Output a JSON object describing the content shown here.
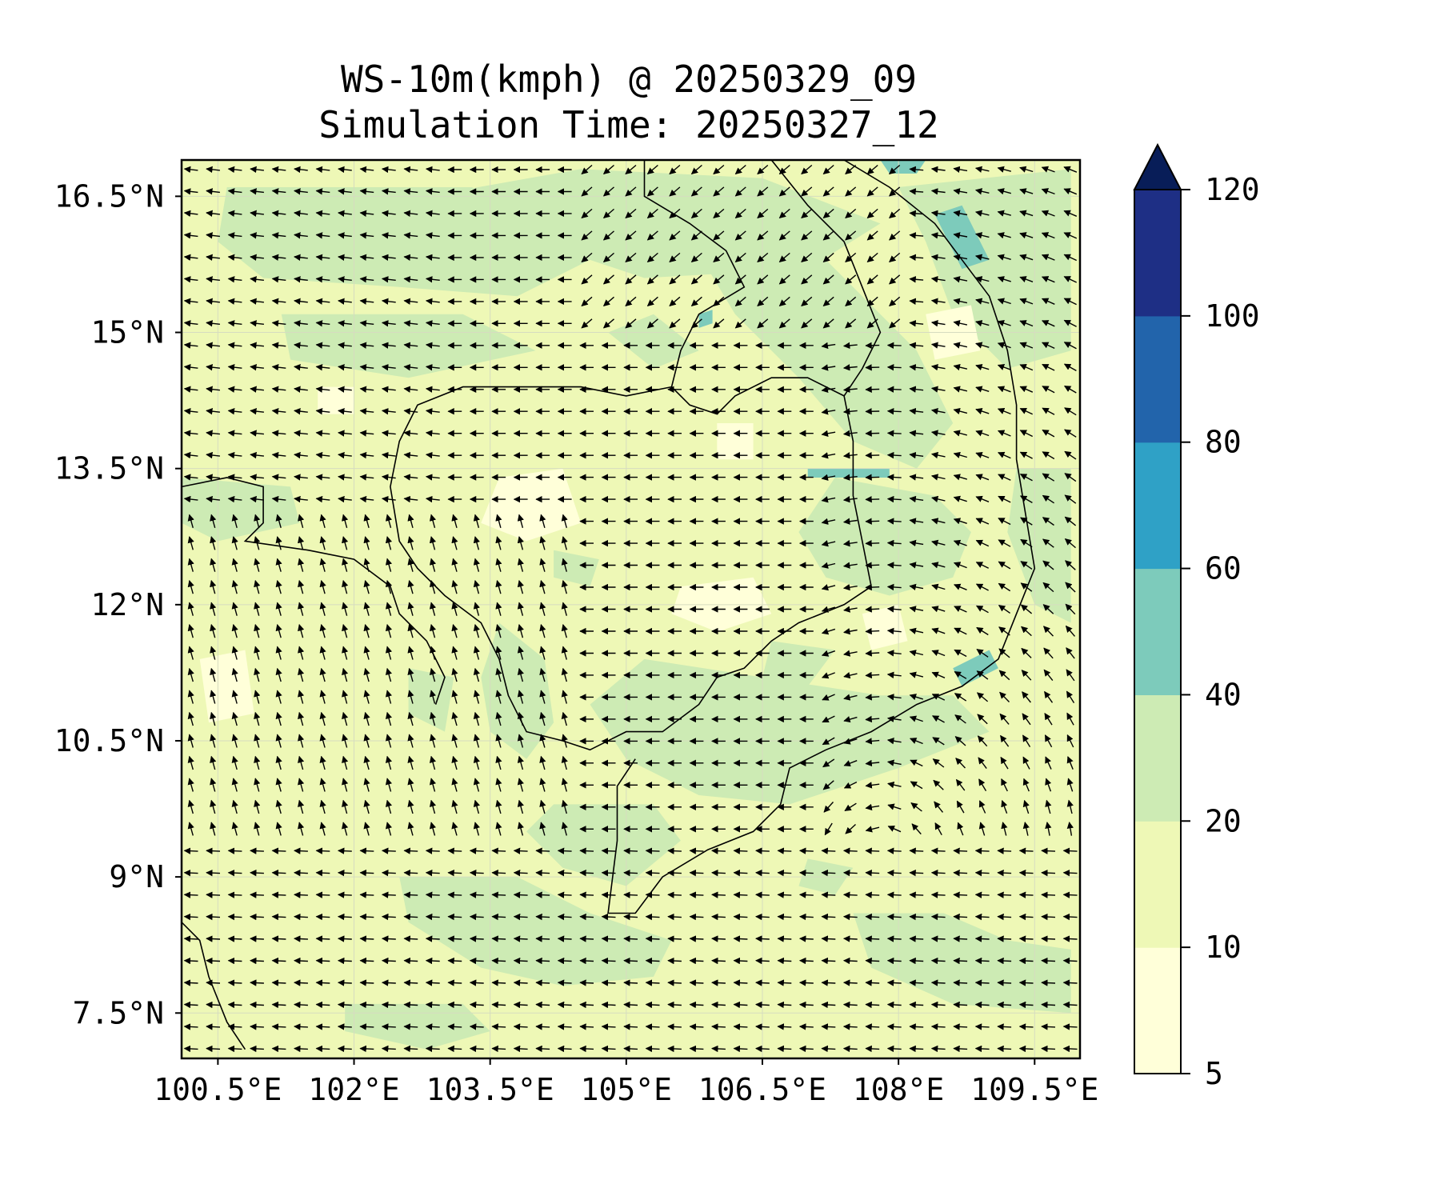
{
  "title": {
    "line1": "WS-10m(kmph) @ 20250329_09",
    "line2": "Simulation Time: 20250327_12"
  },
  "chart_data": {
    "type": "heatmap",
    "variable": "WS-10m(kmph)",
    "valid_time": "20250329_09",
    "simulation_time": "20250327_12",
    "lon_range": [
      100.1,
      110.0
    ],
    "lat_range": [
      7.0,
      16.9
    ],
    "x_ticks": [
      {
        "value": 100.5,
        "label": "100.5°E"
      },
      {
        "value": 102.0,
        "label": "102°E"
      },
      {
        "value": 103.5,
        "label": "103.5°E"
      },
      {
        "value": 105.0,
        "label": "105°E"
      },
      {
        "value": 106.5,
        "label": "106.5°E"
      },
      {
        "value": 108.0,
        "label": "108°E"
      },
      {
        "value": 109.5,
        "label": "109.5°E"
      }
    ],
    "y_ticks": [
      {
        "value": 7.5,
        "label": "7.5°N"
      },
      {
        "value": 9.0,
        "label": "9°N"
      },
      {
        "value": 10.5,
        "label": "10.5°N"
      },
      {
        "value": 12.0,
        "label": "12°N"
      },
      {
        "value": 13.5,
        "label": "13.5°N"
      },
      {
        "value": 15.0,
        "label": "15°N"
      },
      {
        "value": 16.5,
        "label": "16.5°N"
      }
    ],
    "colorbar": {
      "levels": [
        5,
        10,
        20,
        40,
        60,
        80,
        100,
        120
      ],
      "labels": [
        "5",
        "10",
        "20",
        "40",
        "60",
        "80",
        "100",
        "120"
      ],
      "colors": [
        "#ffffd9",
        "#eef8b6",
        "#cdebb4",
        "#7dcbbb",
        "#2fa1c6",
        "#2264ab",
        "#1e2f85"
      ],
      "extend_color": "#081d58",
      "extend": "max"
    },
    "background_color": "#eef8b6",
    "regions": [
      {
        "level": "20-40",
        "color": "#cdebb4",
        "polygons": [
          [
            [
              100.6,
              16.6
            ],
            [
              103.3,
              16.6
            ],
            [
              104.2,
              16.2
            ],
            [
              104.6,
              15.8
            ],
            [
              103.8,
              15.4
            ],
            [
              102.5,
              15.5
            ],
            [
              101.0,
              15.6
            ],
            [
              100.5,
              16.0
            ]
          ],
          [
            [
              102.8,
              16.5
            ],
            [
              104.5,
              16.8
            ],
            [
              106.5,
              16.7
            ],
            [
              107.8,
              16.2
            ],
            [
              107.0,
              15.7
            ],
            [
              105.2,
              15.6
            ],
            [
              104.0,
              16.0
            ]
          ],
          [
            [
              101.2,
              15.2
            ],
            [
              103.2,
              15.2
            ],
            [
              104.0,
              14.8
            ],
            [
              102.6,
              14.5
            ],
            [
              101.3,
              14.7
            ]
          ],
          [
            [
              104.8,
              15.0
            ],
            [
              105.3,
              14.6
            ],
            [
              105.8,
              14.8
            ],
            [
              105.3,
              15.2
            ]
          ],
          [
            [
              105.6,
              16.2
            ],
            [
              106.6,
              16.4
            ],
            [
              107.4,
              15.6
            ],
            [
              108.2,
              14.8
            ],
            [
              108.6,
              14.0
            ],
            [
              108.2,
              13.5
            ],
            [
              107.5,
              13.8
            ],
            [
              106.9,
              14.5
            ],
            [
              106.2,
              15.2
            ]
          ],
          [
            [
              108.0,
              16.6
            ],
            [
              109.9,
              16.8
            ],
            [
              109.9,
              14.8
            ],
            [
              109.2,
              14.6
            ],
            [
              108.6,
              15.2
            ],
            [
              108.3,
              16.0
            ]
          ],
          [
            [
              107.3,
              13.4
            ],
            [
              108.4,
              13.2
            ],
            [
              108.8,
              12.8
            ],
            [
              108.6,
              12.3
            ],
            [
              107.9,
              12.1
            ],
            [
              107.2,
              12.3
            ],
            [
              106.9,
              12.8
            ]
          ],
          [
            [
              109.3,
              13.5
            ],
            [
              109.9,
              13.5
            ],
            [
              109.9,
              11.8
            ],
            [
              109.5,
              12.0
            ],
            [
              109.2,
              12.8
            ]
          ],
          [
            [
              100.1,
              13.4
            ],
            [
              101.3,
              13.3
            ],
            [
              101.4,
              12.9
            ],
            [
              100.5,
              12.7
            ],
            [
              100.1,
              12.9
            ]
          ],
          [
            [
              103.6,
              11.8
            ],
            [
              104.1,
              11.4
            ],
            [
              104.2,
              10.7
            ],
            [
              103.9,
              10.3
            ],
            [
              103.5,
              10.6
            ],
            [
              103.4,
              11.2
            ]
          ],
          [
            [
              104.2,
              12.6
            ],
            [
              104.7,
              12.5
            ],
            [
              104.6,
              12.2
            ],
            [
              104.2,
              12.3
            ]
          ],
          [
            [
              102.6,
              11.3
            ],
            [
              103.1,
              11.2
            ],
            [
              103.0,
              10.6
            ],
            [
              102.6,
              10.8
            ]
          ],
          [
            [
              105.2,
              11.4
            ],
            [
              106.5,
              11.2
            ],
            [
              107.8,
              11.0
            ],
            [
              108.6,
              11.0
            ],
            [
              109.0,
              10.6
            ],
            [
              108.0,
              10.2
            ],
            [
              106.8,
              9.8
            ],
            [
              105.8,
              9.9
            ],
            [
              105.0,
              10.3
            ],
            [
              104.6,
              10.9
            ]
          ],
          [
            [
              106.6,
              11.6
            ],
            [
              107.3,
              11.5
            ],
            [
              107.0,
              11.1
            ],
            [
              106.5,
              11.2
            ]
          ],
          [
            [
              104.2,
              9.8
            ],
            [
              105.3,
              9.8
            ],
            [
              105.6,
              9.4
            ],
            [
              105.0,
              8.9
            ],
            [
              104.3,
              9.1
            ],
            [
              103.9,
              9.5
            ]
          ],
          [
            [
              102.5,
              9.0
            ],
            [
              103.8,
              9.0
            ],
            [
              104.6,
              8.6
            ],
            [
              105.5,
              8.3
            ],
            [
              105.3,
              7.9
            ],
            [
              104.3,
              7.8
            ],
            [
              103.4,
              8.0
            ],
            [
              102.6,
              8.5
            ]
          ],
          [
            [
              101.9,
              7.6
            ],
            [
              103.2,
              7.6
            ],
            [
              103.5,
              7.3
            ],
            [
              102.8,
              7.1
            ],
            [
              101.9,
              7.3
            ]
          ],
          [
            [
              107.0,
              9.2
            ],
            [
              107.5,
              9.1
            ],
            [
              107.3,
              8.8
            ],
            [
              106.9,
              8.9
            ]
          ],
          [
            [
              107.5,
              8.6
            ],
            [
              108.5,
              8.6
            ],
            [
              109.2,
              8.3
            ],
            [
              109.9,
              8.2
            ],
            [
              109.9,
              7.5
            ],
            [
              108.6,
              7.6
            ],
            [
              107.7,
              8.0
            ]
          ]
        ]
      },
      {
        "level": "5-10",
        "color": "#ffffd9",
        "polygons": [
          [
            [
              103.6,
              13.4
            ],
            [
              104.3,
              13.5
            ],
            [
              104.5,
              12.9
            ],
            [
              103.9,
              12.7
            ],
            [
              103.4,
              12.9
            ]
          ],
          [
            [
              105.6,
              12.2
            ],
            [
              106.4,
              12.3
            ],
            [
              106.6,
              11.9
            ],
            [
              106.0,
              11.7
            ],
            [
              105.5,
              11.9
            ]
          ],
          [
            [
              107.6,
              11.9
            ],
            [
              108.0,
              12.0
            ],
            [
              108.1,
              11.6
            ],
            [
              107.7,
              11.5
            ]
          ],
          [
            [
              108.3,
              15.2
            ],
            [
              108.8,
              15.3
            ],
            [
              108.9,
              14.8
            ],
            [
              108.4,
              14.7
            ]
          ],
          [
            [
              100.3,
              11.4
            ],
            [
              100.8,
              11.5
            ],
            [
              100.9,
              10.8
            ],
            [
              100.4,
              10.7
            ]
          ],
          [
            [
              106.0,
              14.0
            ],
            [
              106.4,
              14.0
            ],
            [
              106.4,
              13.6
            ],
            [
              106.0,
              13.6
            ]
          ],
          [
            [
              101.6,
              14.4
            ],
            [
              102.0,
              14.4
            ],
            [
              102.0,
              14.1
            ],
            [
              101.6,
              14.1
            ]
          ]
        ]
      },
      {
        "level": "40-60",
        "color": "#7dcbbb",
        "polygons": [
          [
            [
              108.4,
              16.3
            ],
            [
              108.7,
              16.4
            ],
            [
              109.0,
              15.8
            ],
            [
              108.7,
              15.7
            ]
          ],
          [
            [
              107.0,
              13.5
            ],
            [
              107.9,
              13.5
            ],
            [
              107.9,
              13.4
            ],
            [
              107.0,
              13.4
            ]
          ],
          [
            [
              108.6,
              11.3
            ],
            [
              109.0,
              11.5
            ],
            [
              109.1,
              11.3
            ],
            [
              108.7,
              11.1
            ]
          ],
          [
            [
              105.8,
              15.2
            ],
            [
              105.95,
              15.25
            ],
            [
              105.95,
              15.1
            ],
            [
              105.8,
              15.05
            ]
          ],
          [
            [
              107.8,
              16.9
            ],
            [
              108.3,
              16.9
            ],
            [
              108.2,
              16.75
            ],
            [
              107.9,
              16.75
            ]
          ]
        ]
      }
    ],
    "boundaries": [
      [
        [
          105.2,
          16.9
        ],
        [
          105.2,
          16.5
        ],
        [
          105.7,
          16.2
        ],
        [
          106.1,
          15.9
        ],
        [
          106.3,
          15.5
        ],
        [
          105.8,
          15.2
        ],
        [
          105.6,
          14.8
        ],
        [
          105.5,
          14.4
        ],
        [
          105.0,
          14.3
        ],
        [
          104.5,
          14.4
        ],
        [
          103.8,
          14.4
        ],
        [
          103.2,
          14.4
        ],
        [
          102.7,
          14.2
        ],
        [
          102.5,
          13.8
        ],
        [
          102.4,
          13.3
        ],
        [
          102.5,
          12.7
        ],
        [
          102.7,
          12.4
        ],
        [
          103.0,
          12.1
        ],
        [
          103.4,
          11.8
        ],
        [
          103.6,
          11.4
        ],
        [
          103.7,
          11.0
        ],
        [
          103.9,
          10.6
        ],
        [
          104.3,
          10.5
        ],
        [
          104.6,
          10.4
        ],
        [
          105.0,
          10.6
        ],
        [
          105.4,
          10.6
        ],
        [
          105.8,
          10.9
        ],
        [
          106.0,
          11.2
        ],
        [
          106.3,
          11.3
        ],
        [
          106.6,
          11.6
        ],
        [
          106.9,
          11.8
        ],
        [
          107.4,
          12.0
        ],
        [
          107.7,
          12.2
        ],
        [
          107.6,
          12.7
        ],
        [
          107.5,
          13.2
        ],
        [
          107.5,
          13.8
        ],
        [
          107.4,
          14.3
        ],
        [
          107.6,
          14.6
        ],
        [
          107.8,
          15.0
        ],
        [
          107.6,
          15.5
        ],
        [
          107.4,
          16.0
        ],
        [
          107.0,
          16.4
        ],
        [
          106.6,
          16.9
        ]
      ],
      [
        [
          105.5,
          14.4
        ],
        [
          105.7,
          14.2
        ],
        [
          106.0,
          14.1
        ],
        [
          106.2,
          14.3
        ],
        [
          106.6,
          14.5
        ],
        [
          107.0,
          14.5
        ],
        [
          107.4,
          14.3
        ]
      ],
      [
        [
          106.6,
          16.9
        ],
        [
          107.4,
          16.9
        ],
        [
          107.9,
          16.6
        ],
        [
          108.4,
          16.2
        ],
        [
          108.7,
          15.8
        ],
        [
          109.0,
          15.4
        ],
        [
          109.2,
          14.8
        ],
        [
          109.3,
          14.2
        ],
        [
          109.3,
          13.6
        ],
        [
          109.4,
          13.0
        ],
        [
          109.5,
          12.4
        ],
        [
          109.3,
          11.9
        ],
        [
          109.1,
          11.4
        ],
        [
          108.7,
          11.1
        ],
        [
          108.2,
          10.9
        ],
        [
          107.7,
          10.6
        ],
        [
          107.2,
          10.4
        ],
        [
          106.8,
          10.2
        ],
        [
          106.7,
          9.8
        ],
        [
          106.4,
          9.5
        ],
        [
          105.9,
          9.3
        ],
        [
          105.4,
          9.0
        ],
        [
          105.1,
          8.6
        ],
        [
          104.8,
          8.6
        ],
        [
          104.9,
          9.4
        ],
        [
          104.9,
          10.0
        ],
        [
          105.1,
          10.3
        ]
      ],
      [
        [
          100.1,
          13.3
        ],
        [
          100.6,
          13.4
        ],
        [
          101.0,
          13.3
        ],
        [
          101.0,
          12.9
        ],
        [
          100.8,
          12.7
        ],
        [
          101.5,
          12.6
        ],
        [
          102.0,
          12.5
        ],
        [
          102.4,
          12.2
        ],
        [
          102.5,
          11.9
        ],
        [
          102.8,
          11.6
        ],
        [
          103.0,
          11.2
        ],
        [
          102.9,
          10.9
        ]
      ],
      [
        [
          100.1,
          8.5
        ],
        [
          100.3,
          8.3
        ],
        [
          100.4,
          7.9
        ],
        [
          100.6,
          7.4
        ],
        [
          100.8,
          7.1
        ]
      ]
    ],
    "wind_field": {
      "description": "vectors point toward flow direction; rows top to bottom (lat 16.9 -> 7.0), columns left to right (lon 100.1 -> 110.0)",
      "rows": [
        {
          "lat": 16.6,
          "dir_deg": 180,
          "note": "westward flow over Laos/Thailand, cyclonic turning near Vietnam coast"
        },
        {
          "lat": 12.0,
          "dir_deg": 170
        },
        {
          "lat": 9.0,
          "dir_deg": 185
        }
      ]
    }
  }
}
